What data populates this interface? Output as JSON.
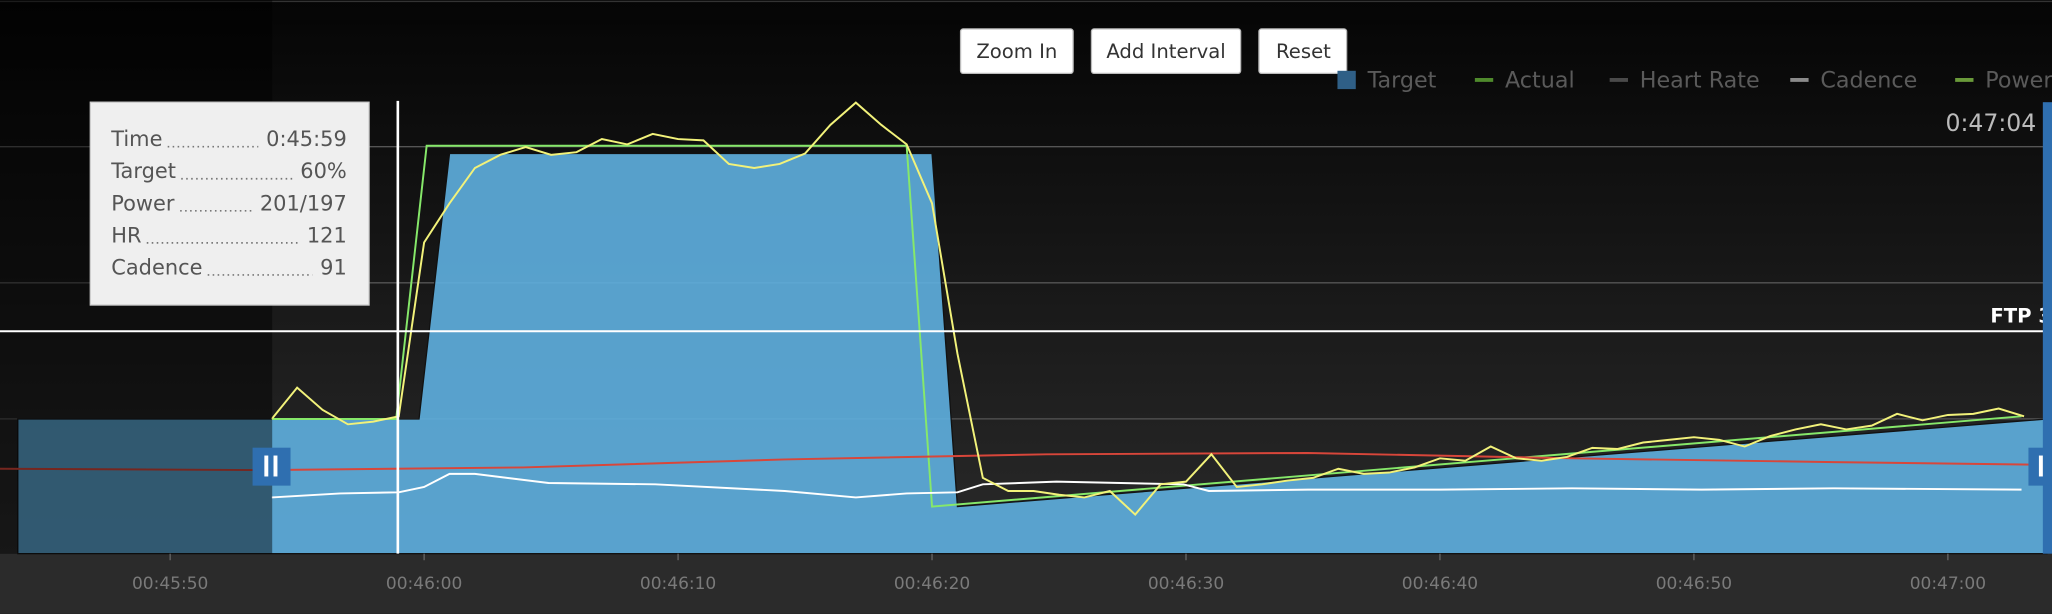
{
  "chart_data": {
    "type": "line",
    "buttons": [
      "Zoom In",
      "Add Interval",
      "Reset"
    ],
    "ftp_label": "FTP 3",
    "time_label": "0:47:04",
    "tooltip": [
      {
        "label": "Time",
        "value": "0:45:59"
      },
      {
        "label": "Target",
        "value": "60%"
      },
      {
        "label": "Power",
        "value": "201/197"
      },
      {
        "label": "HR",
        "value": "121"
      },
      {
        "label": "Cadence",
        "value": "91"
      }
    ],
    "xlim": [
      2743.3,
      2824.1
    ],
    "ylim": [
      0,
      249
    ],
    "xticks": [
      {
        "value": 2750,
        "label": "00:45:50"
      },
      {
        "value": 2760,
        "label": "00:46:00"
      },
      {
        "value": 2770,
        "label": "00:46:10"
      },
      {
        "value": 2780,
        "label": "00:46:20"
      },
      {
        "value": 2790,
        "label": "00:46:30"
      },
      {
        "value": 2800,
        "label": "00:46:40"
      },
      {
        "value": 2810,
        "label": "00:46:50"
      },
      {
        "value": 2820,
        "label": "00:47:00"
      }
    ],
    "series": [
      {
        "name": "Target",
        "color": "#5fb0e0",
        "legend_color": "#2f5f86",
        "kind": "area",
        "x": [
          2744,
          2759.8,
          2761,
          2780,
          2781,
          2823.9
        ],
        "values": [
          60.6,
          60.6,
          180,
          180,
          21.2,
          60.6
        ]
      },
      {
        "name": "Actual",
        "color": "#86e86a",
        "legend_color": "#4f8a2c",
        "kind": "line",
        "x": [
          2754,
          2758.9,
          2760.1,
          2779,
          2780,
          2822.9
        ],
        "values": [
          60.6,
          60.6,
          183.5,
          183.5,
          21.2,
          61.8
        ]
      },
      {
        "name": "Heart Rate",
        "color": "#d8463a",
        "legend_color": "#4a4a4a",
        "kind": "line",
        "x": [
          2743.3,
          2753.6,
          2763.9,
          2774.2,
          2784.5,
          2794.8,
          2805.2,
          2815.5,
          2823.7
        ],
        "values": [
          38.2,
          37.6,
          38.8,
          42.4,
          44.7,
          45.3,
          42.9,
          41.2,
          40
        ]
      },
      {
        "name": "Cadence",
        "color": "#ffffff",
        "legend_color": "#8a8a8a",
        "kind": "line",
        "x": [
          2754.0,
          2756.7,
          2759.0,
          2760.0,
          2761.0,
          2762.0,
          2764.9,
          2769.1,
          2774.2,
          2777.0,
          2779.0,
          2781.0,
          2782.0,
          2784.9,
          2789.9,
          2790.9,
          2794.8,
          2800.0,
          2805.2,
          2810.3,
          2815.5,
          2822.9
        ],
        "values": [
          25.3,
          27.1,
          27.6,
          30,
          35.9,
          35.9,
          31.8,
          31.2,
          28.2,
          25.3,
          27.1,
          27.6,
          31.2,
          32.4,
          31.2,
          28.2,
          28.8,
          28.8,
          29.4,
          28.8,
          29.4,
          28.8
        ]
      },
      {
        "name": "Power",
        "color": "#f2f27a",
        "legend_color": "#6a9a3a",
        "kind": "line",
        "x": [
          2754,
          2755,
          2756,
          2757,
          2758,
          2759,
          2760,
          2761,
          2762,
          2763,
          2764,
          2765,
          2766,
          2767,
          2768,
          2769,
          2770,
          2771,
          2772,
          2773,
          2774,
          2775,
          2776,
          2777,
          2778,
          2779,
          2780,
          2781,
          2782,
          2783,
          2784,
          2785,
          2786,
          2787,
          2788,
          2789,
          2790,
          2791,
          2792,
          2793,
          2794,
          2795,
          2796,
          2797,
          2798,
          2799,
          2800,
          2801,
          2802,
          2803,
          2804,
          2805,
          2806,
          2807,
          2808,
          2809,
          2810,
          2811,
          2812,
          2813,
          2814,
          2815,
          2816,
          2817,
          2818,
          2819,
          2820,
          2821,
          2822,
          2823
        ],
        "values": [
          60.6,
          74.7,
          64.7,
          58.2,
          59.4,
          61.8,
          140,
          157.6,
          173.5,
          179.4,
          182.9,
          179.4,
          180.6,
          186.5,
          184.1,
          188.8,
          186.5,
          185.9,
          175.3,
          173.5,
          175.3,
          180,
          192.9,
          202.9,
          192.9,
          184.1,
          157.6,
          90,
          34.1,
          28.2,
          28.2,
          26.5,
          25.3,
          28.2,
          17.6,
          31.2,
          32.4,
          44.7,
          30,
          31.2,
          32.9,
          34.1,
          38.2,
          35.9,
          36.5,
          38.8,
          42.9,
          41.8,
          48.2,
          42.9,
          41.8,
          43.5,
          47.6,
          47.1,
          50,
          51.2,
          52.4,
          51.2,
          48.2,
          52.9,
          55.9,
          58.2,
          55.9,
          57.6,
          62.9,
          60,
          62.4,
          62.9,
          65.3,
          61.8
        ]
      }
    ]
  }
}
